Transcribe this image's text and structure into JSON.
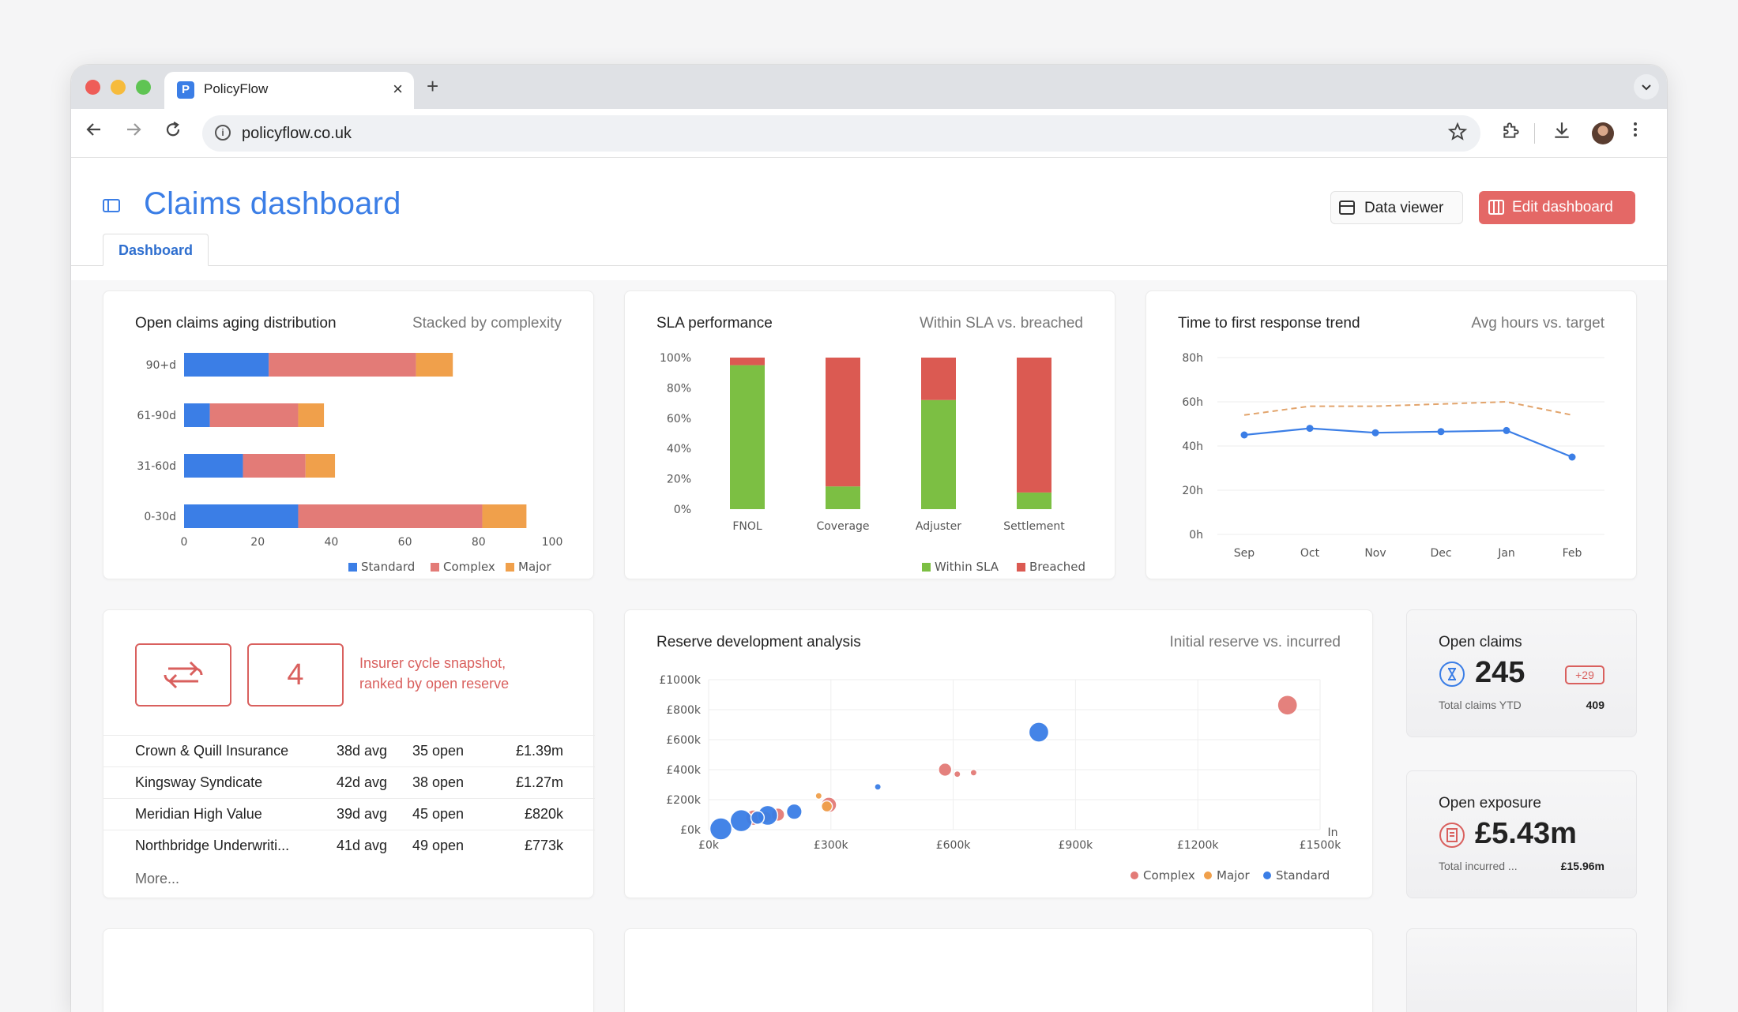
{
  "browser": {
    "tab_title": "PolicyFlow",
    "tab_favicon": "P",
    "tab_close": "×",
    "new_tab": "+",
    "url": "policyflow.co.uk",
    "icons": [
      "back-icon",
      "forward-icon",
      "reload-icon",
      "info-icon",
      "star-icon",
      "extensions-icon",
      "download-icon",
      "menu-icon"
    ]
  },
  "header": {
    "title": "Claims dashboard",
    "data_viewer_label": "Data viewer",
    "edit_label": "Edit dashboard",
    "tabs": [
      {
        "label": "Dashboard"
      }
    ]
  },
  "colors": {
    "accent": "#3b7ee6",
    "standard": "#3b7ee6",
    "complex": "#e37b77",
    "major": "#f0a04b",
    "within_sla": "#7cbf43",
    "breached": "#db5a52"
  },
  "aging": {
    "title": "Open claims aging distribution",
    "subtitle": "Stacked by complexity",
    "chart_data": {
      "type": "bar",
      "orientation": "horizontal",
      "stacked": true,
      "categories": [
        "90+d",
        "61-90d",
        "31-60d",
        "0-30d"
      ],
      "series": [
        {
          "name": "Standard",
          "values": [
            23,
            7,
            16,
            31
          ]
        },
        {
          "name": "Complex",
          "values": [
            40,
            24,
            17,
            50
          ]
        },
        {
          "name": "Major",
          "values": [
            10,
            7,
            8,
            12
          ]
        }
      ],
      "xlim": [
        0,
        100
      ],
      "xticks": [
        "0",
        "20",
        "40",
        "60",
        "80",
        "100"
      ],
      "legend": "bottom-right"
    }
  },
  "sla": {
    "title": "SLA performance",
    "subtitle": "Within SLA vs. breached",
    "chart_data": {
      "type": "bar",
      "stacked": true,
      "categories": [
        "FNOL",
        "Coverage",
        "Adjuster",
        "Settlement"
      ],
      "series": [
        {
          "name": "Within SLA",
          "values": [
            95,
            15,
            72,
            11
          ]
        },
        {
          "name": "Breached",
          "values": [
            5,
            85,
            28,
            89
          ]
        }
      ],
      "ylim": [
        0,
        100
      ],
      "yticks": [
        "0%",
        "20%",
        "40%",
        "60%",
        "80%",
        "100%"
      ],
      "legend": "bottom-right"
    }
  },
  "response": {
    "title": "Time to first response trend",
    "subtitle": "Avg hours vs. target",
    "chart_data": {
      "type": "line",
      "categories": [
        "Sep",
        "Oct",
        "Nov",
        "Dec",
        "Jan",
        "Feb"
      ],
      "series": [
        {
          "values": [
            45,
            48,
            46,
            46.5,
            47,
            35
          ]
        },
        {
          "values": [
            54,
            58,
            58,
            59,
            60,
            54
          ],
          "style": "dashed"
        }
      ],
      "ylim": [
        0,
        80
      ],
      "yticks": [
        "0h",
        "20h",
        "40h",
        "60h",
        "80h"
      ],
      "grid": true
    }
  },
  "insurers": {
    "snapshot_count": "4",
    "snapshot_text": "Insurer cycle snapshot, ranked by open reserve",
    "rows": [
      {
        "name": "Crown & Quill Insurance",
        "avg": "38d avg",
        "open": "35 open",
        "reserve": "£1.39m"
      },
      {
        "name": "Kingsway Syndicate",
        "avg": "42d avg",
        "open": "38 open",
        "reserve": "£1.27m"
      },
      {
        "name": "Meridian High Value",
        "avg": "39d avg",
        "open": "45 open",
        "reserve": "£820k"
      },
      {
        "name": "Northbridge Underwriti...",
        "avg": "41d avg",
        "open": "49 open",
        "reserve": "£773k"
      }
    ],
    "more_label": "More..."
  },
  "reserve": {
    "title": "Reserve development analysis",
    "subtitle": "Initial reserve vs. incurred",
    "chart_data": {
      "type": "scatter",
      "xlim": [
        0,
        1500
      ],
      "ylim": [
        0,
        1000
      ],
      "xticks": [
        "£0k",
        "£300k",
        "£600k",
        "£900k",
        "£1200k",
        "£1500k"
      ],
      "yticks": [
        "£0k",
        "£200k",
        "£400k",
        "£600k",
        "£800k",
        "£1000k"
      ],
      "x_axis_suffix": "In",
      "series": [
        {
          "name": "Complex",
          "points": [
            {
              "x": 1420,
              "y": 830,
              "size": 9
            },
            {
              "x": 580,
              "y": 400,
              "size": 6
            },
            {
              "x": 610,
              "y": 370,
              "size": 3
            },
            {
              "x": 650,
              "y": 380,
              "size": 3
            },
            {
              "x": 295,
              "y": 165,
              "size": 7
            },
            {
              "x": 170,
              "y": 100,
              "size": 6
            },
            {
              "x": 110,
              "y": 80,
              "size": 7
            }
          ]
        },
        {
          "name": "Major",
          "points": [
            {
              "x": 270,
              "y": 225,
              "size": 3
            },
            {
              "x": 290,
              "y": 155,
              "size": 5
            },
            {
              "x": 140,
              "y": 85,
              "size": 5
            }
          ]
        },
        {
          "name": "Standard",
          "points": [
            {
              "x": 810,
              "y": 650,
              "size": 9
            },
            {
              "x": 415,
              "y": 285,
              "size": 3
            },
            {
              "x": 210,
              "y": 120,
              "size": 7
            },
            {
              "x": 145,
              "y": 95,
              "size": 9
            },
            {
              "x": 80,
              "y": 60,
              "size": 10
            },
            {
              "x": 30,
              "y": 5,
              "size": 10
            },
            {
              "x": 120,
              "y": 80,
              "size": 6
            }
          ]
        }
      ],
      "legend": "bottom-right",
      "grid": true
    }
  },
  "kpis": {
    "open_claims": {
      "title": "Open claims",
      "value": "245",
      "badge": "+29",
      "foot_label": "Total claims YTD",
      "foot_value": "409",
      "icon": "hourglass-icon"
    },
    "open_exposure": {
      "title": "Open exposure",
      "value": "£5.43m",
      "foot_label": "Total incurred ...",
      "foot_value": "£15.96m",
      "icon": "receipt-icon"
    }
  }
}
